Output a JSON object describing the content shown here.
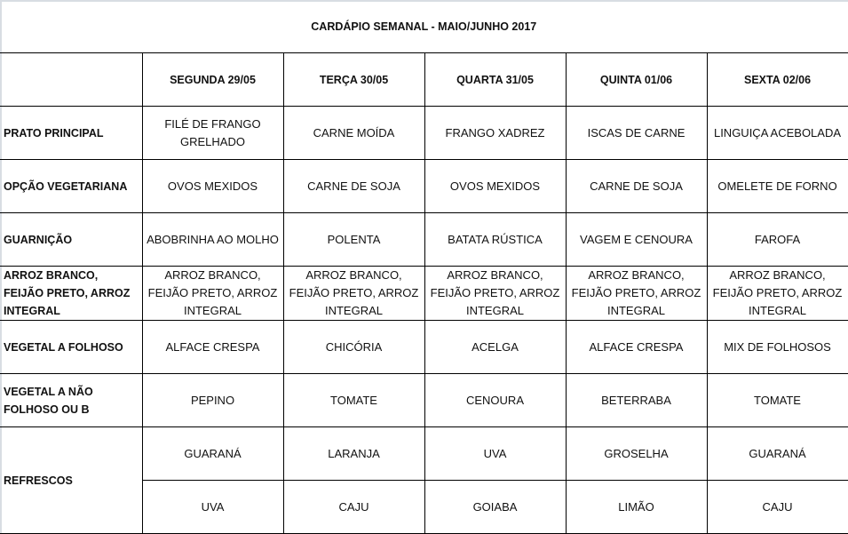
{
  "title": "CARDÁPIO SEMANAL - MAIO/JUNHO 2017",
  "days": [
    "SEGUNDA   29/05",
    "TERÇA  30/05",
    "QUARTA 31/05",
    "QUINTA 01/06",
    "SEXTA 02/06"
  ],
  "rows": [
    {
      "label": "PRATO PRINCIPAL",
      "items": [
        "FILÉ DE FRANGO GRELHADO",
        "CARNE MOÍDA",
        "FRANGO XADREZ",
        "ISCAS DE CARNE",
        "LINGUIÇA ACEBOLADA"
      ]
    },
    {
      "label": "OPÇÃO VEGETARIANA",
      "items": [
        "OVOS MEXIDOS",
        "CARNE DE SOJA",
        "OVOS MEXIDOS",
        "CARNE DE SOJA",
        "OMELETE DE FORNO"
      ]
    },
    {
      "label": "GUARNIÇÃO",
      "items": [
        "ABOBRINHA AO MOLHO",
        "POLENTA",
        "BATATA RÚSTICA",
        "VAGEM E CENOURA",
        "FAROFA"
      ]
    },
    {
      "label": "ARROZ BRANCO, FEIJÃO PRETO, ARROZ INTEGRAL",
      "items": [
        "ARROZ BRANCO, FEIJÃO PRETO, ARROZ INTEGRAL",
        "ARROZ BRANCO, FEIJÃO PRETO, ARROZ INTEGRAL",
        "ARROZ BRANCO, FEIJÃO PRETO, ARROZ INTEGRAL",
        "ARROZ BRANCO, FEIJÃO PRETO, ARROZ INTEGRAL",
        "ARROZ BRANCO, FEIJÃO PRETO, ARROZ INTEGRAL"
      ]
    },
    {
      "label": "VEGETAL A FOLHOSO",
      "items": [
        "ALFACE CRESPA",
        "CHICÓRIA",
        "ACELGA",
        "ALFACE CRESPA",
        "MIX DE FOLHOSOS"
      ]
    },
    {
      "label": "VEGETAL A NÃO FOLHOSO OU B",
      "items": [
        "PEPINO",
        "TOMATE",
        "CENOURA",
        "BETERRABA",
        "TOMATE"
      ]
    }
  ],
  "refrescos": {
    "label": "REFRESCOS",
    "row1": [
      "GUARANÁ",
      "LARANJA",
      "UVA",
      "GROSELHA",
      "GUARANÁ"
    ],
    "row2": [
      "UVA",
      "CAJU",
      "GOIABA",
      "LIMÃO",
      "CAJU"
    ]
  }
}
